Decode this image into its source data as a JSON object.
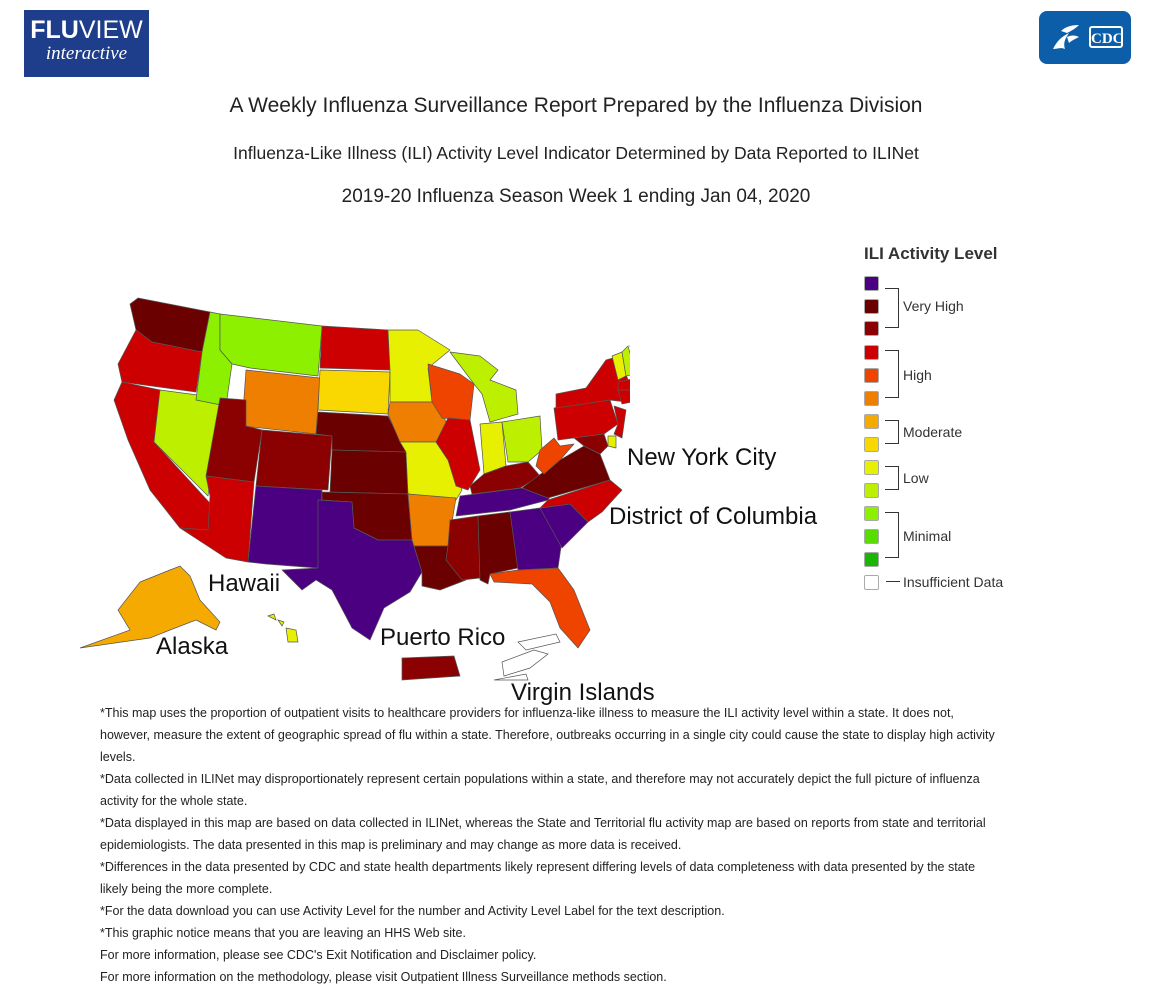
{
  "header": {
    "logo_left_line1_bold": "FLU",
    "logo_left_line1_thin": "VIEW",
    "logo_left_line2": "interactive",
    "logo_right_text": "CDC"
  },
  "titles": {
    "main": "A Weekly Influenza Surveillance Report Prepared by the Influenza Division",
    "sub": "Influenza-Like Illness (ILI) Activity Level Indicator Determined by Data Reported to ILINet",
    "season": "2019-20 Influenza Season Week 1 ending Jan 04, 2020"
  },
  "map_labels": {
    "new_york_city": "New York City",
    "district_of_columbia": "District of Columbia",
    "hawaii": "Hawaii",
    "alaska": "Alaska",
    "puerto_rico": "Puerto Rico",
    "virgin_islands": "Virgin Islands"
  },
  "legend": {
    "title": "ILI Activity Level",
    "colors": [
      "#4b0082",
      "#6b0000",
      "#8b0000",
      "#cc0000",
      "#ee4400",
      "#ee7f00",
      "#f4aa00",
      "#f8d800",
      "#e6f000",
      "#bcf000",
      "#8cf000",
      "#58dd00",
      "#18b800",
      "#ffffff"
    ],
    "groups": [
      {
        "label": "Very High"
      },
      {
        "label": "High"
      },
      {
        "label": "Moderate"
      },
      {
        "label": "Low"
      },
      {
        "label": "Minimal"
      },
      {
        "label": "Insufficient Data"
      }
    ]
  },
  "state_colors": {
    "WA": "#6b0000",
    "OR": "#cc0000",
    "CA": "#cc0000",
    "NV": "#bcf000",
    "ID": "#8cf000",
    "MT": "#8cf000",
    "WY": "#ee7f00",
    "UT": "#8b0000",
    "AZ": "#cc0000",
    "CO": "#8b0000",
    "NM": "#4b0082",
    "ND": "#cc0000",
    "SD": "#f8d800",
    "NE": "#6b0000",
    "KS": "#6b0000",
    "OK": "#6b0000",
    "TX": "#4b0082",
    "MN": "#e6f000",
    "IA": "#ee7f00",
    "MO": "#e6f000",
    "AR": "#ee7f00",
    "LA": "#6b0000",
    "WI": "#ee4400",
    "IL": "#cc0000",
    "MI": "#bcf000",
    "IN": "#e6f000",
    "OH": "#bcf000",
    "KY": "#8b0000",
    "TN": "#4b0082",
    "MS": "#8b0000",
    "AL": "#6b0000",
    "GA": "#4b0082",
    "FL": "#ee4400",
    "SC": "#4b0082",
    "NC": "#cc0000",
    "VA": "#6b0000",
    "WV": "#ee4400",
    "PA": "#cc0000",
    "NY": "#cc0000",
    "NJ": "#cc0000",
    "ME": "#ee7f00",
    "NH": "#bcf000",
    "VT": "#e6f000",
    "MA": "#cc0000",
    "CT": "#cc0000",
    "RI": "#8b0000",
    "DE": "#e6f000",
    "MD": "#8b0000",
    "NYC": "#8b0000",
    "DC": "#cc0000",
    "AK": "#f4aa00",
    "HI": "#e6f000",
    "PR": "#8b0000",
    "VI": "#ffffff"
  },
  "notes": [
    "*This map uses the proportion of outpatient visits to healthcare providers for influenza-like illness to measure the ILI activity level within a state. It does not, however, measure the extent of geographic spread of flu within a state. Therefore, outbreaks occurring in a single city could cause the state to display high activity levels.",
    "*Data collected in ILINet may disproportionately represent certain populations within a state, and therefore may not accurately depict the full picture of influenza activity for the whole state.",
    "*Data displayed in this map are based on data collected in ILINet, whereas the State and Territorial flu activity map are based on reports from state and territorial epidemiologists. The data presented in this map is preliminary and may change as more data is received.",
    "*Differences in the data presented by CDC and state health departments likely represent differing levels of data completeness with data presented by the state likely being the more complete.",
    "*For the data download you can use Activity Level for the number and Activity Level Label for the text description.",
    "*This graphic notice means that you are leaving an HHS Web site.",
    "For more information, please see CDC's Exit Notification and Disclaimer policy.",
    "For more information on the methodology, please visit Outpatient Illness Surveillance methods section."
  ]
}
